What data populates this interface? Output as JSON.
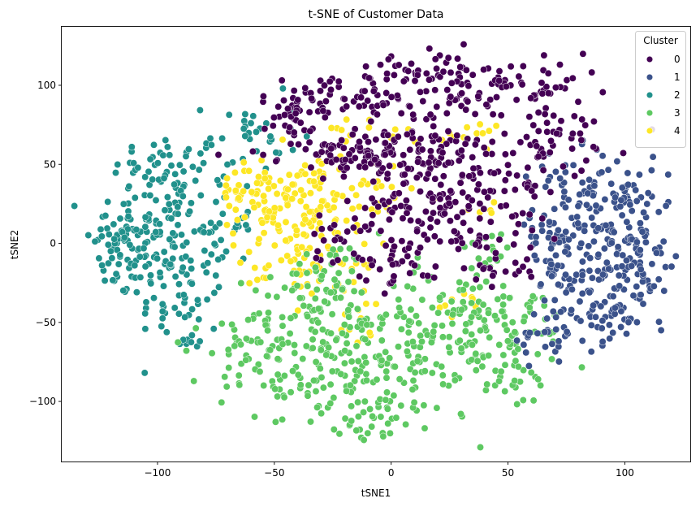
{
  "chart_data": {
    "type": "scatter",
    "title": "t-SNE of Customer Data",
    "xlabel": "tSNE1",
    "ylabel": "tSNE2",
    "xlim": [
      -141,
      128
    ],
    "ylim": [
      -138,
      137
    ],
    "xticks": [
      -100,
      -50,
      0,
      50,
      100
    ],
    "yticks": [
      -100,
      -50,
      0,
      50,
      100
    ],
    "xtick_labels": [
      "−100",
      "−50",
      "0",
      "50",
      "100"
    ],
    "ytick_labels": [
      "−100",
      "−50",
      "0",
      "50",
      "100"
    ],
    "grid": false,
    "legend": {
      "title": "Cluster",
      "placement": "top-right",
      "entries": [
        "0",
        "1",
        "2",
        "3",
        "4"
      ]
    },
    "series": [
      {
        "name": "0",
        "color": "#440154",
        "regions": [
          {
            "cx": 22,
            "cy": 110,
            "sx": 15,
            "sy": 6,
            "n": 45
          },
          {
            "cx": 55,
            "cy": 95,
            "sx": 18,
            "sy": 10,
            "n": 55
          },
          {
            "cx": -25,
            "cy": 92,
            "sx": 16,
            "sy": 8,
            "n": 55
          },
          {
            "cx": 10,
            "cy": 88,
            "sx": 12,
            "sy": 12,
            "n": 45
          },
          {
            "cx": -20,
            "cy": 58,
            "sx": 18,
            "sy": 8,
            "n": 55
          },
          {
            "cx": 30,
            "cy": 50,
            "sx": 22,
            "sy": 12,
            "n": 85
          },
          {
            "cx": 5,
            "cy": 55,
            "sx": 15,
            "sy": 10,
            "n": 55
          },
          {
            "cx": 10,
            "cy": 20,
            "sx": 15,
            "sy": 12,
            "n": 65
          },
          {
            "cx": 35,
            "cy": 12,
            "sx": 15,
            "sy": 12,
            "n": 50
          },
          {
            "cx": 5,
            "cy": -12,
            "sx": 10,
            "sy": 8,
            "n": 30
          },
          {
            "cx": -23,
            "cy": 3,
            "sx": 6,
            "sy": 8,
            "n": 18
          },
          {
            "cx": 70,
            "cy": 65,
            "sx": 15,
            "sy": 12,
            "n": 40
          },
          {
            "cx": -45,
            "cy": 75,
            "sx": 8,
            "sy": 10,
            "n": 25
          },
          {
            "cx": 45,
            "cy": -15,
            "sx": 10,
            "sy": 8,
            "n": 20
          }
        ]
      },
      {
        "name": "1",
        "color": "#3b528b",
        "regions": [
          {
            "cx": 95,
            "cy": 5,
            "sx": 12,
            "sy": 25,
            "n": 120
          },
          {
            "cx": 110,
            "cy": -15,
            "sx": 7,
            "sy": 15,
            "n": 35
          },
          {
            "cx": 75,
            "cy": -20,
            "sx": 10,
            "sy": 15,
            "n": 55
          },
          {
            "cx": 80,
            "cy": 35,
            "sx": 10,
            "sy": 12,
            "n": 40
          },
          {
            "cx": 90,
            "cy": -45,
            "sx": 10,
            "sy": 10,
            "n": 35
          },
          {
            "cx": 70,
            "cy": -60,
            "sx": 8,
            "sy": 10,
            "n": 22
          },
          {
            "cx": 65,
            "cy": 10,
            "sx": 6,
            "sy": 10,
            "n": 20
          },
          {
            "cx": 100,
            "cy": 30,
            "sx": 8,
            "sy": 10,
            "n": 20
          }
        ]
      },
      {
        "name": "2",
        "color": "#21918c",
        "regions": [
          {
            "cx": -95,
            "cy": 45,
            "sx": 12,
            "sy": 12,
            "n": 60
          },
          {
            "cx": -115,
            "cy": 10,
            "sx": 8,
            "sy": 12,
            "n": 40
          },
          {
            "cx": -100,
            "cy": 5,
            "sx": 10,
            "sy": 15,
            "n": 50
          },
          {
            "cx": -110,
            "cy": -20,
            "sx": 8,
            "sy": 8,
            "n": 25
          },
          {
            "cx": -90,
            "cy": -40,
            "sx": 10,
            "sy": 10,
            "n": 35
          },
          {
            "cx": -75,
            "cy": 15,
            "sx": 8,
            "sy": 15,
            "n": 35
          },
          {
            "cx": -60,
            "cy": 70,
            "sx": 10,
            "sy": 12,
            "n": 30
          },
          {
            "cx": -80,
            "cy": -10,
            "sx": 8,
            "sy": 10,
            "n": 25
          },
          {
            "cx": -120,
            "cy": 0,
            "sx": 5,
            "sy": 6,
            "n": 15
          },
          {
            "cx": -85,
            "cy": -60,
            "sx": 4,
            "sy": 5,
            "n": 8
          }
        ]
      },
      {
        "name": "3",
        "color": "#5ec962",
        "regions": [
          {
            "cx": 0,
            "cy": -75,
            "sx": 28,
            "sy": 18,
            "n": 160
          },
          {
            "cx": 30,
            "cy": -45,
            "sx": 18,
            "sy": 15,
            "n": 90
          },
          {
            "cx": -30,
            "cy": -45,
            "sx": 15,
            "sy": 15,
            "n": 80
          },
          {
            "cx": -45,
            "cy": -85,
            "sx": 15,
            "sy": 10,
            "n": 40
          },
          {
            "cx": -60,
            "cy": -65,
            "sx": 10,
            "sy": 10,
            "n": 30
          },
          {
            "cx": 50,
            "cy": -80,
            "sx": 10,
            "sy": 12,
            "n": 30
          },
          {
            "cx": -10,
            "cy": -110,
            "sx": 15,
            "sy": 8,
            "n": 40
          },
          {
            "cx": 60,
            "cy": -50,
            "sx": 8,
            "sy": 10,
            "n": 20
          },
          {
            "cx": -25,
            "cy": -20,
            "sx": 10,
            "sy": 10,
            "n": 30
          },
          {
            "cx": 40,
            "cy": -5,
            "sx": 6,
            "sy": 8,
            "n": 15
          }
        ]
      },
      {
        "name": "4",
        "color": "#fde725",
        "regions": [
          {
            "cx": -45,
            "cy": 20,
            "sx": 12,
            "sy": 18,
            "n": 90
          },
          {
            "cx": -25,
            "cy": 25,
            "sx": 12,
            "sy": 12,
            "n": 55
          },
          {
            "cx": -60,
            "cy": 30,
            "sx": 10,
            "sy": 8,
            "n": 30
          },
          {
            "cx": -40,
            "cy": -15,
            "sx": 10,
            "sy": 10,
            "n": 30
          },
          {
            "cx": -15,
            "cy": -25,
            "sx": 5,
            "sy": 12,
            "n": 20
          },
          {
            "cx": -15,
            "cy": 70,
            "sx": 8,
            "sy": 4,
            "n": 12
          },
          {
            "cx": 25,
            "cy": 70,
            "sx": 12,
            "sy": 6,
            "n": 15
          },
          {
            "cx": 30,
            "cy": -40,
            "sx": 6,
            "sy": 4,
            "n": 10
          },
          {
            "cx": -15,
            "cy": -55,
            "sx": 4,
            "sy": 4,
            "n": 6
          },
          {
            "cx": 40,
            "cy": 20,
            "sx": 5,
            "sy": 4,
            "n": 6
          },
          {
            "cx": 0,
            "cy": 28,
            "sx": 6,
            "sy": 5,
            "n": 10
          }
        ]
      }
    ]
  }
}
